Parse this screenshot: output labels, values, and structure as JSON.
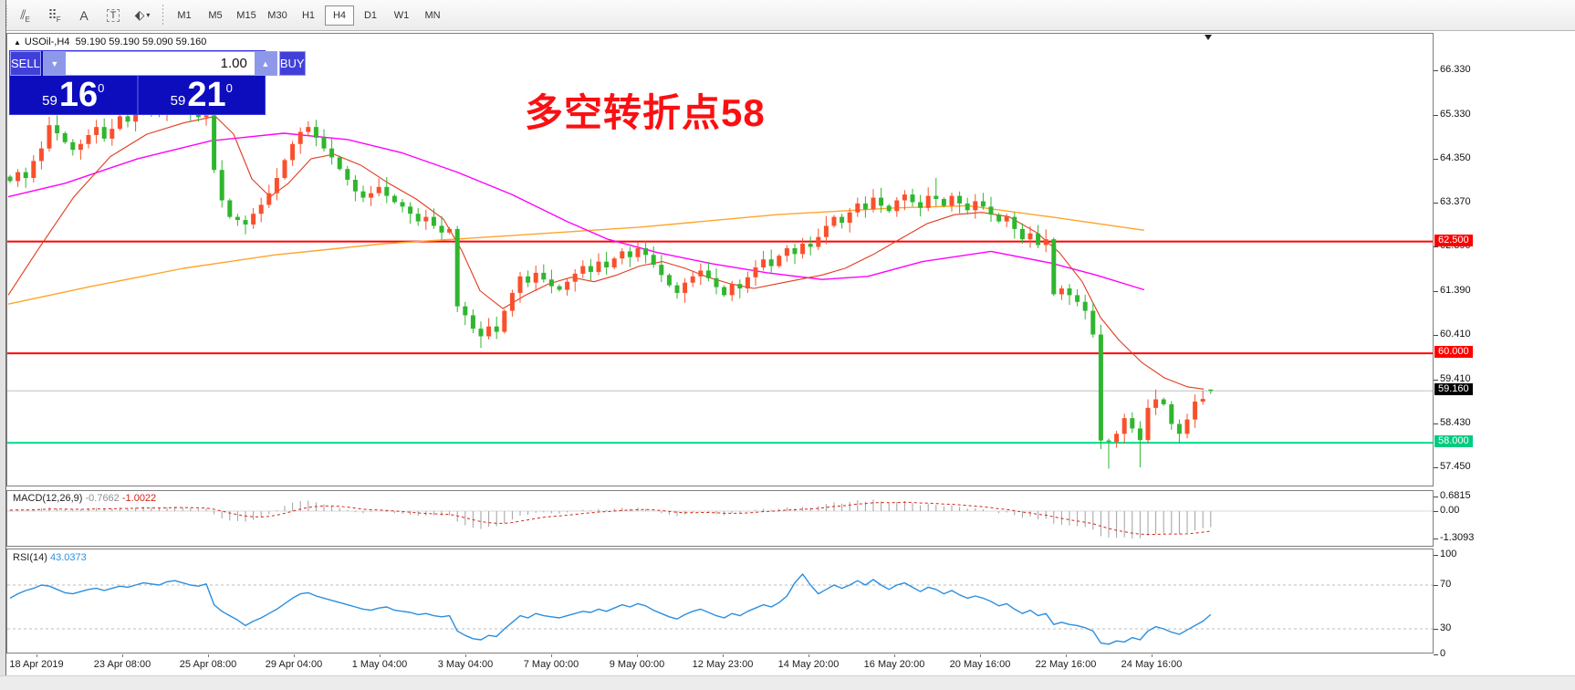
{
  "toolbar": {
    "tools": [
      {
        "name": "equidistant-channel-tool",
        "glyph": "⫽",
        "sub": "E"
      },
      {
        "name": "fibonacci-tool",
        "glyph": "⠿",
        "sub": "F"
      },
      {
        "name": "text-tool",
        "glyph": "A",
        "sub": ""
      },
      {
        "name": "text-label-tool",
        "glyph": "T",
        "sub": "",
        "boxed": true
      },
      {
        "name": "arrows-tool",
        "glyph": "⬖",
        "sub": "",
        "caret": "▾"
      }
    ],
    "timeframes": [
      "M1",
      "M5",
      "M15",
      "M30",
      "H1",
      "H4",
      "D1",
      "W1",
      "MN"
    ],
    "active_timeframe": "H4"
  },
  "chart_header": {
    "marker": "▲",
    "symbol": "USOil-,H4",
    "ohlc": "59.190 59.190 59.090 59.160"
  },
  "trade_panel": {
    "sell_label": "SELL",
    "buy_label": "BUY",
    "volume": "1.00",
    "spin_down": "▼",
    "spin_up": "▲",
    "sell_price": {
      "small": "59",
      "big": "16",
      "sup": "0"
    },
    "buy_price": {
      "small": "59",
      "big": "21",
      "sup": "0"
    }
  },
  "annotation": {
    "text": "多空转折点58",
    "color": "#fb0f12"
  },
  "chart_data": {
    "type": "candlestick",
    "symbol": "USOil-",
    "timeframe": "H4",
    "current_ohlc": {
      "open": 59.19,
      "high": 59.19,
      "low": 59.09,
      "close": 59.16
    },
    "price_axis": {
      "ticks": [
        66.33,
        65.33,
        64.35,
        63.37,
        62.39,
        61.39,
        60.41,
        59.41,
        58.43,
        57.45
      ],
      "range": [
        57.05,
        66.9
      ]
    },
    "hlines": [
      {
        "price": 62.5,
        "label": "62.500",
        "color": "#ff0000",
        "width": 2,
        "tag_bg": "#ff0000"
      },
      {
        "price": 60.0,
        "label": "60.000",
        "color": "#ff0000",
        "width": 2,
        "tag_bg": "#ff0000"
      },
      {
        "price": 58.0,
        "label": "58.000",
        "color": "#00dd8c",
        "width": 2,
        "tag_bg": "#00cc80"
      },
      {
        "price": 59.16,
        "label": "59.160",
        "color": "#c0c0c0",
        "width": 1,
        "tag_bg": "#000000"
      }
    ],
    "candles": {
      "up_color": "#f9502c",
      "down_color": "#2fb62f",
      "first_open": 63.95,
      "closes": [
        63.85,
        64.05,
        63.92,
        64.3,
        64.58,
        65.1,
        64.92,
        64.72,
        64.55,
        64.68,
        64.88,
        65.06,
        64.8,
        65.02,
        65.3,
        65.18,
        65.42,
        65.58,
        65.48,
        65.35,
        65.52,
        65.68,
        65.55,
        65.42,
        65.28,
        65.32,
        64.1,
        63.42,
        63.05,
        62.98,
        62.88,
        63.12,
        63.32,
        63.58,
        63.92,
        64.32,
        64.68,
        64.95,
        65.06,
        64.82,
        64.58,
        64.38,
        64.12,
        63.88,
        63.62,
        63.48,
        63.58,
        63.72,
        63.52,
        63.38,
        63.28,
        63.12,
        62.95,
        63.05,
        62.85,
        62.7,
        62.78,
        61.05,
        60.85,
        60.55,
        60.38,
        60.6,
        60.48,
        60.95,
        61.35,
        61.72,
        61.58,
        61.8,
        61.65,
        61.5,
        61.42,
        61.6,
        61.78,
        61.95,
        61.82,
        62.05,
        61.92,
        62.12,
        62.28,
        62.15,
        62.35,
        62.2,
        61.98,
        61.75,
        61.52,
        61.35,
        61.58,
        61.72,
        61.85,
        61.68,
        61.48,
        61.3,
        61.55,
        61.45,
        61.7,
        61.92,
        62.1,
        61.95,
        62.18,
        62.35,
        62.22,
        62.45,
        62.38,
        62.6,
        62.85,
        63.05,
        62.92,
        63.15,
        63.35,
        63.22,
        63.48,
        63.3,
        63.18,
        63.42,
        63.55,
        63.38,
        63.25,
        63.52,
        63.45,
        63.3,
        63.52,
        63.35,
        63.2,
        63.4,
        63.28,
        63.1,
        62.95,
        63.05,
        62.78,
        62.55,
        62.68,
        62.42,
        62.55,
        61.32,
        61.45,
        61.3,
        61.15,
        60.95,
        60.42,
        58.05,
        58.02,
        58.2,
        58.55,
        58.32,
        58.06,
        58.78,
        58.97,
        58.86,
        58.42,
        58.2,
        58.52,
        58.92,
        58.98,
        59.16
      ],
      "open_overrides": {
        "153": 59.19
      },
      "wick_overrides": {
        "60": {
          "low": 60.12
        },
        "118": {
          "high": 63.92
        },
        "139": {
          "low": 57.86
        },
        "140": {
          "low": 57.42
        },
        "144": {
          "low": 57.45
        },
        "153": {
          "high": 59.19,
          "low": 59.09
        }
      }
    },
    "moving_averages": [
      {
        "name": "slow-ma-orange",
        "color": "#ffa42b",
        "width": 1.4,
        "points": [
          [
            8,
            61.1
          ],
          [
            100,
            61.5
          ],
          [
            200,
            61.9
          ],
          [
            300,
            62.2
          ],
          [
            420,
            62.45
          ],
          [
            550,
            62.62
          ],
          [
            700,
            62.82
          ],
          [
            850,
            63.1
          ],
          [
            980,
            63.25
          ],
          [
            1060,
            63.3
          ],
          [
            1150,
            63.05
          ],
          [
            1253,
            62.75
          ]
        ]
      },
      {
        "name": "medium-ma-magenta",
        "color": "#ff00ff",
        "width": 1.4,
        "points": [
          [
            8,
            63.5
          ],
          [
            70,
            63.8
          ],
          [
            150,
            64.35
          ],
          [
            230,
            64.75
          ],
          [
            310,
            64.92
          ],
          [
            380,
            64.78
          ],
          [
            440,
            64.48
          ],
          [
            500,
            64.05
          ],
          [
            560,
            63.55
          ],
          [
            620,
            62.95
          ],
          [
            665,
            62.55
          ],
          [
            720,
            62.25
          ],
          [
            780,
            62.0
          ],
          [
            840,
            61.8
          ],
          [
            900,
            61.65
          ],
          [
            950,
            61.72
          ],
          [
            1010,
            62.05
          ],
          [
            1085,
            62.28
          ],
          [
            1150,
            62.02
          ],
          [
            1200,
            61.75
          ],
          [
            1253,
            61.42
          ]
        ]
      },
      {
        "name": "fast-ma-red",
        "color": "#e03c1e",
        "width": 1.1,
        "points": [
          [
            8,
            61.3
          ],
          [
            40,
            62.3
          ],
          [
            80,
            63.5
          ],
          [
            120,
            64.4
          ],
          [
            160,
            64.9
          ],
          [
            200,
            65.15
          ],
          [
            235,
            65.3
          ],
          [
            255,
            64.9
          ],
          [
            275,
            63.9
          ],
          [
            295,
            63.5
          ],
          [
            315,
            63.8
          ],
          [
            340,
            64.35
          ],
          [
            365,
            64.45
          ],
          [
            395,
            64.2
          ],
          [
            425,
            63.8
          ],
          [
            455,
            63.45
          ],
          [
            485,
            63.0
          ],
          [
            505,
            62.3
          ],
          [
            525,
            61.4
          ],
          [
            550,
            61.0
          ],
          [
            575,
            61.3
          ],
          [
            600,
            61.55
          ],
          [
            625,
            61.7
          ],
          [
            650,
            61.6
          ],
          [
            675,
            61.75
          ],
          [
            700,
            61.95
          ],
          [
            725,
            62.05
          ],
          [
            750,
            61.9
          ],
          [
            775,
            61.7
          ],
          [
            800,
            61.55
          ],
          [
            825,
            61.45
          ],
          [
            850,
            61.55
          ],
          [
            875,
            61.65
          ],
          [
            900,
            61.75
          ],
          [
            925,
            61.9
          ],
          [
            955,
            62.2
          ],
          [
            985,
            62.55
          ],
          [
            1015,
            62.9
          ],
          [
            1045,
            63.1
          ],
          [
            1075,
            63.15
          ],
          [
            1105,
            63.05
          ],
          [
            1135,
            62.7
          ],
          [
            1160,
            62.25
          ],
          [
            1185,
            61.6
          ],
          [
            1205,
            60.8
          ],
          [
            1225,
            60.3
          ],
          [
            1250,
            59.8
          ],
          [
            1275,
            59.45
          ],
          [
            1300,
            59.25
          ],
          [
            1318,
            59.2
          ]
        ]
      }
    ],
    "macd": {
      "label": "MACD(12,26,9)",
      "main_value": "-0.7662",
      "signal_value": "-1.0022",
      "axis_ticks": [
        0.6815,
        0.0,
        -1.3093
      ],
      "histogram_color": "#a0a0a0",
      "signal_color": "#d42314",
      "values": [
        0.05,
        0.08,
        0.03,
        0.1,
        0.14,
        0.18,
        0.12,
        0.08,
        0.05,
        0.08,
        0.12,
        0.15,
        0.1,
        0.13,
        0.17,
        0.14,
        0.18,
        0.21,
        0.17,
        0.13,
        0.18,
        0.22,
        0.18,
        0.14,
        0.1,
        0.12,
        -0.15,
        -0.35,
        -0.45,
        -0.48,
        -0.5,
        -0.42,
        -0.3,
        -0.15,
        0.05,
        0.25,
        0.4,
        0.48,
        0.5,
        0.42,
        0.33,
        0.25,
        0.15,
        0.05,
        -0.05,
        -0.1,
        -0.05,
        0.0,
        -0.05,
        -0.1,
        -0.13,
        -0.18,
        -0.22,
        -0.22,
        -0.2,
        -0.22,
        -0.2,
        -0.5,
        -0.68,
        -0.8,
        -0.85,
        -0.75,
        -0.72,
        -0.58,
        -0.4,
        -0.22,
        -0.18,
        -0.08,
        -0.06,
        -0.1,
        -0.12,
        -0.06,
        0.0,
        0.06,
        0.04,
        0.1,
        0.06,
        0.12,
        0.16,
        0.1,
        0.16,
        0.1,
        0.0,
        -0.1,
        -0.18,
        -0.24,
        -0.16,
        -0.08,
        -0.02,
        -0.06,
        -0.14,
        -0.2,
        -0.1,
        -0.12,
        -0.02,
        0.06,
        0.12,
        0.06,
        0.12,
        0.18,
        0.12,
        0.2,
        0.16,
        0.24,
        0.34,
        0.42,
        0.36,
        0.44,
        0.52,
        0.45,
        0.55,
        0.46,
        0.38,
        0.44,
        0.48,
        0.38,
        0.28,
        0.36,
        0.3,
        0.22,
        0.28,
        0.2,
        0.12,
        0.14,
        0.08,
        0.0,
        -0.1,
        -0.06,
        -0.2,
        -0.32,
        -0.26,
        -0.4,
        -0.36,
        -0.6,
        -0.65,
        -0.68,
        -0.72,
        -0.76,
        -0.88,
        -1.2,
        -1.26,
        -1.28,
        -1.25,
        -1.31,
        -1.29,
        -1.18,
        -1.1,
        -1.06,
        -1.08,
        -1.1,
        -1.05,
        -0.92,
        -0.82,
        -0.7662
      ]
    },
    "rsi": {
      "label": "RSI(14)",
      "value": "43.0373",
      "levels": [
        100,
        70,
        30,
        0
      ],
      "dashed_levels": [
        70,
        30
      ],
      "line_color": "#2a8fe0",
      "values": [
        58,
        62,
        65,
        67,
        70,
        69,
        66,
        63,
        62,
        64,
        66,
        67,
        65,
        67,
        69,
        68,
        70,
        72,
        71,
        70,
        73,
        74,
        72,
        70,
        69,
        71,
        52,
        46,
        42,
        38,
        33,
        37,
        40,
        44,
        48,
        53,
        58,
        62,
        63,
        60,
        58,
        56,
        54,
        52,
        50,
        48,
        47,
        49,
        50,
        47,
        46,
        45,
        43,
        44,
        42,
        41,
        42,
        28,
        24,
        21,
        20,
        24,
        23,
        30,
        36,
        42,
        40,
        44,
        42,
        41,
        40,
        42,
        44,
        46,
        45,
        48,
        46,
        49,
        52,
        50,
        53,
        51,
        47,
        44,
        41,
        39,
        43,
        46,
        48,
        45,
        42,
        40,
        44,
        42,
        46,
        49,
        52,
        50,
        54,
        60,
        72,
        80,
        70,
        62,
        66,
        70,
        67,
        70,
        74,
        70,
        75,
        70,
        66,
        70,
        72,
        68,
        64,
        68,
        66,
        62,
        65,
        61,
        58,
        60,
        58,
        55,
        51,
        53,
        48,
        44,
        47,
        42,
        44,
        34,
        36,
        34,
        33,
        31,
        28,
        17,
        16,
        19,
        18,
        22,
        20,
        28,
        32,
        30,
        27,
        25,
        29,
        33,
        37,
        43
      ]
    },
    "date_axis": {
      "labels": [
        "18 Apr 2019",
        "23 Apr 08:00",
        "25 Apr 08:00",
        "29 Apr 04:00",
        "1 May 04:00",
        "3 May 04:00",
        "7 May 00:00",
        "9 May 00:00",
        "12 May 23:00",
        "14 May 20:00",
        "16 May 20:00",
        "20 May 16:00",
        "22 May 16:00",
        "24 May 16:00"
      ]
    }
  }
}
